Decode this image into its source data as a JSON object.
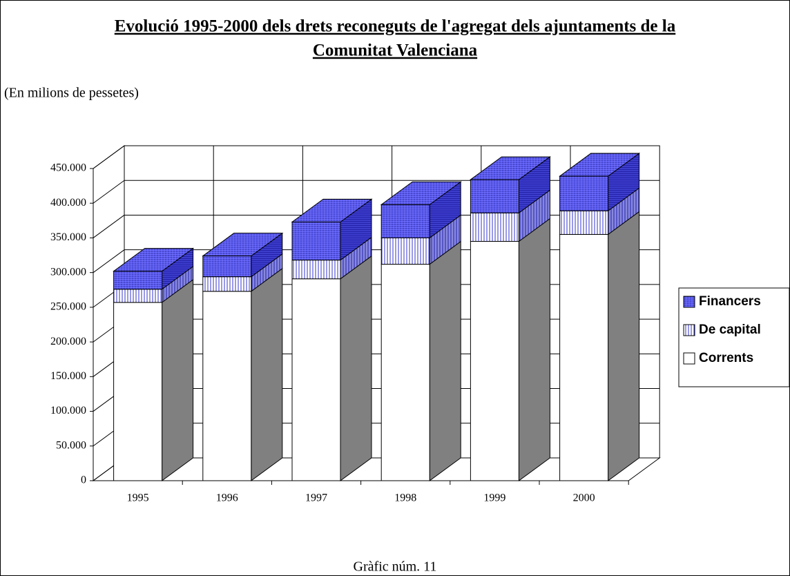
{
  "chart_data": {
    "type": "bar3d_stacked",
    "title": [
      "Evolució 1995-2000 dels drets reconeguts de l'agregat dels ajuntaments de la",
      "Comunitat Valenciana"
    ],
    "subtitle": "(En milions de pessetes)",
    "caption": "Gràfic núm. 11",
    "categories": [
      "1995",
      "1996",
      "1997",
      "1998",
      "1999",
      "2000"
    ],
    "series": [
      {
        "name": "Corrents",
        "color": "#ffffff",
        "values": [
          257000,
          273000,
          291000,
          312000,
          345000,
          355000
        ]
      },
      {
        "name": "De capital",
        "color": "#c8c8ff",
        "values": [
          19000,
          21000,
          27000,
          38000,
          41000,
          34000
        ]
      },
      {
        "name": "Financers",
        "color": "#6666ff",
        "values": [
          26000,
          30000,
          55000,
          48000,
          48000,
          50000
        ]
      }
    ],
    "ylim": [
      0,
      450000
    ],
    "yticks": [
      0,
      {
        "value": 50000,
        "label": "50.000"
      },
      {
        "value": 100000,
        "label": "100.000"
      },
      {
        "value": 150000,
        "label": "150.000"
      },
      {
        "value": 200000,
        "label": "200.000"
      },
      {
        "value": 250000,
        "label": "250.000"
      },
      {
        "value": 300000,
        "label": "300.000"
      },
      {
        "value": 350000,
        "label": "350.000"
      },
      {
        "value": 400000,
        "label": "400.000"
      },
      {
        "value": 450000,
        "label": "450.000"
      }
    ],
    "grid": true
  }
}
